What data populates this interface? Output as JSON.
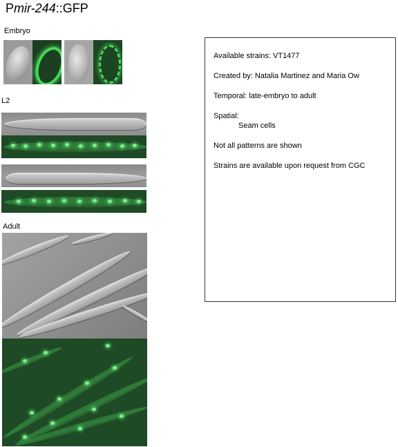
{
  "title": {
    "prefix": "P",
    "gene": "mir-244",
    "suffix": "::GFP"
  },
  "sections": {
    "embryo": "Embryo",
    "l2": "L2",
    "adult": "Adult"
  },
  "info": {
    "strains": "Available strains: VT1477",
    "created": "Created by: Natalia Martinez and Maria Ow",
    "temporal": "Temporal: late-embryo to adult",
    "spatial_label": "Spatial:",
    "spatial_value": "Seam cells",
    "note": "Not all patterns are shown",
    "request": "Strains are available upon request from CGC"
  }
}
